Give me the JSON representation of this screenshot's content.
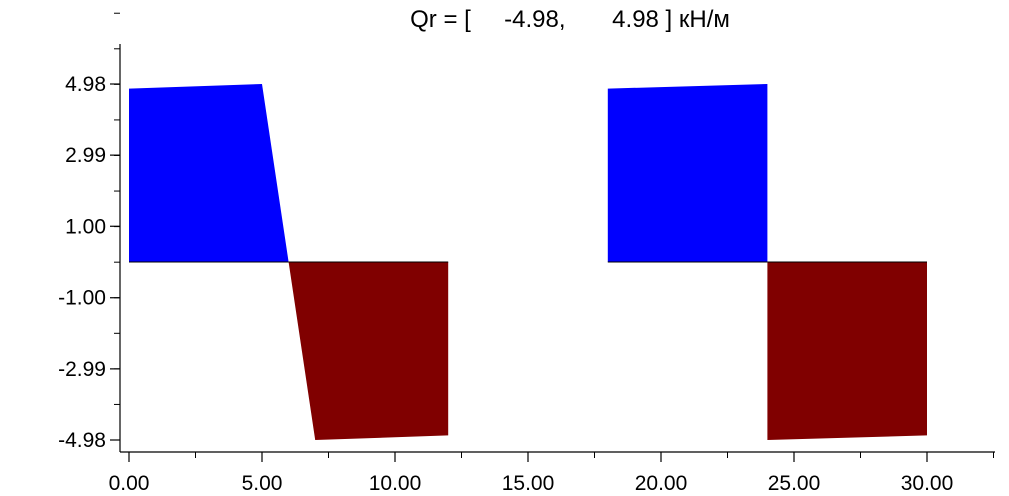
{
  "chart_data": {
    "type": "area",
    "title": "Qr = [     -4.98,       4.98 ] кН/м",
    "xlabel": "",
    "ylabel": "",
    "xlim": [
      -0.5,
      32.5
    ],
    "ylim": [
      -5.3,
      8.1
    ],
    "x_ticks": [
      0,
      5,
      10,
      15,
      20,
      25,
      30
    ],
    "x_tick_labels": [
      "0.00",
      "5.00",
      "10.00",
      "15.00",
      "20.00",
      "25.00",
      "30.00"
    ],
    "y_ticks": [
      4.98,
      2.99,
      1.0,
      -1.0,
      -2.99,
      -4.98
    ],
    "y_tick_labels": [
      "4.98",
      "2.99",
      "1.00",
      "-1.00",
      "-2.99",
      "-4.98"
    ],
    "grid": false,
    "colors": {
      "positive": "#0000ff",
      "negative": "#800000",
      "axis": "#000000"
    },
    "series": [
      {
        "sign": "positive",
        "points": [
          [
            0,
            0
          ],
          [
            0,
            4.85
          ],
          [
            5,
            4.98
          ],
          [
            6,
            0
          ]
        ]
      },
      {
        "sign": "negative",
        "points": [
          [
            6,
            0
          ],
          [
            7,
            -4.98
          ],
          [
            12,
            -4.85
          ],
          [
            12,
            0
          ]
        ]
      },
      {
        "sign": "positive",
        "points": [
          [
            18,
            0
          ],
          [
            18,
            4.85
          ],
          [
            24,
            4.98
          ],
          [
            24,
            0
          ]
        ]
      },
      {
        "sign": "negative",
        "points": [
          [
            24,
            0
          ],
          [
            24,
            -4.98
          ],
          [
            30,
            -4.85
          ],
          [
            30,
            0
          ]
        ]
      }
    ]
  }
}
